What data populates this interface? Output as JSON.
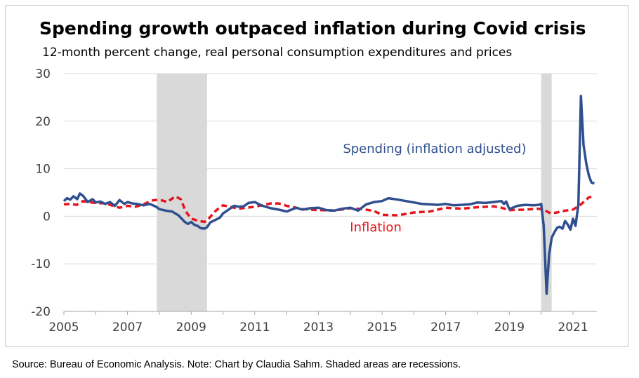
{
  "chart_data": {
    "type": "line",
    "title": "Spending growth outpaced inflation during Covid crisis",
    "subtitle": "12-month percent change, real personal consumption expenditures and prices",
    "xlabel": "",
    "ylabel": "",
    "xlim": [
      2005.0,
      2021.75
    ],
    "ylim": [
      -20,
      30
    ],
    "yticks": [
      30,
      20,
      10,
      0,
      -10,
      -20
    ],
    "xticks": [
      2005,
      2007,
      2009,
      2011,
      2013,
      2015,
      2017,
      2019,
      2021
    ],
    "grid": "horizontal",
    "legend": "none",
    "recessions": [
      {
        "start": 2007.92,
        "end": 2009.5
      },
      {
        "start": 2020.0,
        "end": 2020.33
      }
    ],
    "annotations": [
      {
        "text": "Spending (inflation adjusted)",
        "x": 2016.65,
        "y": 13.3,
        "series": "spending"
      },
      {
        "text": "Inflation",
        "x": 2014.8,
        "y": -3.2,
        "series": "inflation"
      }
    ],
    "series": [
      {
        "name": "spending",
        "color": "#2f4f8f",
        "style": "solid",
        "x": [
          2005.0,
          2005.1,
          2005.2,
          2005.3,
          2005.42,
          2005.5,
          2005.6,
          2005.75,
          2005.9,
          2006.0,
          2006.15,
          2006.3,
          2006.45,
          2006.6,
          2006.75,
          2006.9,
          2007.0,
          2007.15,
          2007.3,
          2007.5,
          2007.7,
          2007.8,
          2007.9,
          2008.0,
          2008.2,
          2008.4,
          2008.6,
          2008.8,
          2008.9,
          2009.0,
          2009.1,
          2009.2,
          2009.3,
          2009.42,
          2009.5,
          2009.6,
          2009.75,
          2009.9,
          2010.0,
          2010.2,
          2010.35,
          2010.5,
          2010.65,
          2010.8,
          2011.0,
          2011.2,
          2011.5,
          2011.75,
          2012.0,
          2012.3,
          2012.5,
          2012.75,
          2013.0,
          2013.25,
          2013.5,
          2013.75,
          2014.0,
          2014.25,
          2014.5,
          2014.75,
          2015.0,
          2015.2,
          2015.5,
          2015.75,
          2016.0,
          2016.25,
          2016.5,
          2016.75,
          2017.0,
          2017.25,
          2017.5,
          2017.75,
          2018.0,
          2018.25,
          2018.5,
          2018.75,
          2018.83,
          2018.9,
          2019.0,
          2019.25,
          2019.5,
          2019.75,
          2019.92,
          2020.0,
          2020.08,
          2020.17,
          2020.25,
          2020.33,
          2020.42,
          2020.5,
          2020.58,
          2020.67,
          2020.75,
          2020.83,
          2020.92,
          2021.0,
          2021.08,
          2021.17,
          2021.25,
          2021.33,
          2021.42,
          2021.5,
          2021.58,
          2021.67
        ],
        "y": [
          3.2,
          3.8,
          3.5,
          4.2,
          3.6,
          4.8,
          4.3,
          3.0,
          3.6,
          2.9,
          3.1,
          2.6,
          3.0,
          2.2,
          3.4,
          2.6,
          3.0,
          2.7,
          2.6,
          2.3,
          2.6,
          2.3,
          2.0,
          1.5,
          1.2,
          1.0,
          0.2,
          -1.2,
          -1.6,
          -1.2,
          -1.8,
          -2.0,
          -2.5,
          -2.6,
          -2.3,
          -1.3,
          -0.8,
          -0.3,
          0.6,
          1.5,
          2.2,
          2.0,
          2.1,
          2.8,
          3.0,
          2.3,
          1.7,
          1.4,
          1.0,
          1.8,
          1.4,
          1.7,
          1.8,
          1.3,
          1.2,
          1.6,
          1.8,
          1.2,
          2.5,
          3.0,
          3.2,
          3.8,
          3.5,
          3.2,
          2.9,
          2.6,
          2.5,
          2.4,
          2.6,
          2.3,
          2.4,
          2.5,
          2.9,
          2.8,
          3.0,
          3.2,
          2.6,
          3.1,
          1.5,
          2.2,
          2.4,
          2.3,
          2.4,
          2.6,
          -2.0,
          -16.3,
          -8.0,
          -4.5,
          -3.3,
          -2.4,
          -2.2,
          -2.6,
          -1.0,
          -1.7,
          -2.8,
          -0.5,
          -2.0,
          2.5,
          25.3,
          15.0,
          11.0,
          8.5,
          7.1,
          6.9
        ]
      },
      {
        "name": "inflation",
        "color": "#e8141b",
        "style": "dashed",
        "x": [
          2005.0,
          2005.2,
          2005.4,
          2005.6,
          2005.75,
          2006.0,
          2006.3,
          2006.5,
          2006.75,
          2007.0,
          2007.25,
          2007.5,
          2007.75,
          2008.0,
          2008.25,
          2008.5,
          2008.67,
          2008.83,
          2009.0,
          2009.2,
          2009.42,
          2009.55,
          2009.75,
          2009.92,
          2010.0,
          2010.5,
          2011.0,
          2011.5,
          2011.75,
          2012.0,
          2012.5,
          2013.0,
          2013.5,
          2014.0,
          2014.4,
          2014.75,
          2015.0,
          2015.5,
          2016.0,
          2016.5,
          2017.0,
          2017.5,
          2018.0,
          2018.5,
          2018.75,
          2019.0,
          2019.5,
          2019.92,
          2020.1,
          2020.3,
          2020.5,
          2020.75,
          2021.0,
          2021.25,
          2021.5,
          2021.67
        ],
        "y": [
          2.5,
          2.6,
          2.4,
          3.2,
          3.0,
          2.8,
          2.7,
          2.3,
          1.8,
          2.2,
          2.0,
          2.5,
          3.3,
          3.5,
          3.0,
          4.2,
          3.6,
          1.0,
          -0.5,
          -0.9,
          -1.2,
          -0.5,
          1.0,
          2.0,
          2.3,
          1.6,
          2.0,
          2.7,
          2.7,
          2.2,
          1.5,
          1.3,
          1.2,
          1.7,
          1.5,
          1.1,
          0.3,
          0.2,
          0.8,
          1.0,
          1.8,
          1.6,
          1.9,
          2.1,
          1.8,
          1.3,
          1.4,
          1.6,
          1.3,
          0.6,
          0.8,
          1.2,
          1.4,
          2.5,
          4.0,
          4.2
        ]
      }
    ]
  },
  "footer": {
    "source": "Source: Bureau of Economic Analysis. Note: Chart by Claudia Sahm. Shaded areas are recessions."
  }
}
